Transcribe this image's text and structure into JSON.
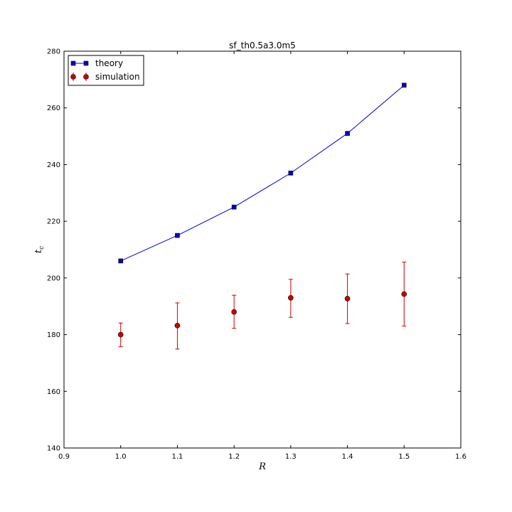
{
  "chart_data": {
    "type": "line",
    "title": "sf_th0.5a3.0m5",
    "xlabel": "R",
    "ylabel_main": "t",
    "ylabel_sub": "c",
    "xlim": [
      0.9,
      1.6
    ],
    "ylim": [
      140,
      280
    ],
    "x_ticks": [
      0.9,
      1.0,
      1.1,
      1.2,
      1.3,
      1.4,
      1.5,
      1.6
    ],
    "x_tick_labels": [
      "0.9",
      "1.0",
      "1.1",
      "1.2",
      "1.3",
      "1.4",
      "1.5",
      "1.6"
    ],
    "y_ticks": [
      140,
      160,
      180,
      200,
      220,
      240,
      260,
      280
    ],
    "y_tick_labels": [
      "140",
      "160",
      "180",
      "200",
      "220",
      "240",
      "260",
      "280"
    ],
    "grid": false,
    "legend_position": "top-left",
    "series": [
      {
        "name": "theory",
        "kind": "line-marker",
        "marker": "square",
        "color": "#0000cc",
        "x": [
          1.0,
          1.1,
          1.2,
          1.3,
          1.4,
          1.5
        ],
        "y": [
          206,
          215,
          225,
          237,
          251,
          268
        ]
      },
      {
        "name": "simulation",
        "kind": "errorbar",
        "marker": "circle",
        "color": "#cc0000",
        "x": [
          1.0,
          1.1,
          1.2,
          1.3,
          1.4,
          1.5
        ],
        "y": [
          180,
          183.2,
          188,
          193,
          192.7,
          194.3
        ],
        "yerr_low": [
          175.7,
          174.9,
          182.2,
          186.1,
          183.9,
          183
        ],
        "yerr_high": [
          184.1,
          191.2,
          193.9,
          199.5,
          201.4,
          205.6
        ]
      }
    ]
  }
}
